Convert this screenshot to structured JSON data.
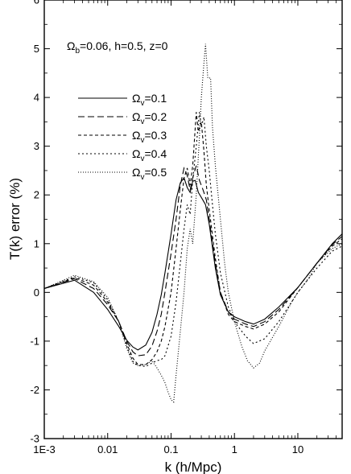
{
  "chart_data": {
    "type": "line",
    "title": "",
    "xlabel": "k (h/Mpc)",
    "ylabel": "T(k) error (%)",
    "xscale": "log",
    "xlim": [
      0.001,
      50
    ],
    "ylim": [
      -3,
      6
    ],
    "x_ticks": [
      {
        "value": 0.001,
        "label": "1E-3"
      },
      {
        "value": 0.01,
        "label": "0.01"
      },
      {
        "value": 0.1,
        "label": "0.1"
      },
      {
        "value": 1,
        "label": "1"
      },
      {
        "value": 10,
        "label": "10"
      }
    ],
    "y_ticks": [
      -3,
      -2,
      -1,
      0,
      1,
      2,
      3,
      4,
      5,
      6
    ],
    "grid": false,
    "legend_position": "upper-left",
    "annotation": {
      "omega": "Ω",
      "b_subscript": "b",
      "rest": "=0.06, h=0.5, z=0"
    },
    "series": [
      {
        "name": "Ωv=0.1",
        "symbol": "Ω",
        "subscript": "v",
        "value_text": "=0.1",
        "dash": "none",
        "width": 1.1,
        "points": [
          [
            0.001,
            0.08
          ],
          [
            0.003,
            0.25
          ],
          [
            0.006,
            0.0
          ],
          [
            0.01,
            -0.35
          ],
          [
            0.015,
            -0.7
          ],
          [
            0.02,
            -0.98
          ],
          [
            0.025,
            -1.12
          ],
          [
            0.03,
            -1.18
          ],
          [
            0.04,
            -1.08
          ],
          [
            0.05,
            -0.82
          ],
          [
            0.06,
            -0.45
          ],
          [
            0.07,
            -0.05
          ],
          [
            0.08,
            0.4
          ],
          [
            0.1,
            1.2
          ],
          [
            0.12,
            1.9
          ],
          [
            0.14,
            2.25
          ],
          [
            0.16,
            2.35
          ],
          [
            0.18,
            2.15
          ],
          [
            0.2,
            2.05
          ],
          [
            0.22,
            2.28
          ],
          [
            0.24,
            2.3
          ],
          [
            0.27,
            2.05
          ],
          [
            0.3,
            1.95
          ],
          [
            0.35,
            1.8
          ],
          [
            0.4,
            1.4
          ],
          [
            0.5,
            0.5
          ],
          [
            0.6,
            -0.05
          ],
          [
            0.8,
            -0.4
          ],
          [
            1.0,
            -0.5
          ],
          [
            1.5,
            -0.6
          ],
          [
            2,
            -0.65
          ],
          [
            3,
            -0.55
          ],
          [
            5,
            -0.3
          ],
          [
            10,
            0.1
          ],
          [
            20,
            0.6
          ],
          [
            35,
            1.0
          ],
          [
            50,
            1.2
          ]
        ]
      },
      {
        "name": "Ωv=0.2",
        "symbol": "Ω",
        "subscript": "v",
        "value_text": "=0.2",
        "dash": "8 4",
        "width": 1.1,
        "points": [
          [
            0.001,
            0.08
          ],
          [
            0.003,
            0.28
          ],
          [
            0.006,
            0.08
          ],
          [
            0.01,
            -0.25
          ],
          [
            0.015,
            -0.6
          ],
          [
            0.02,
            -1.0
          ],
          [
            0.025,
            -1.22
          ],
          [
            0.03,
            -1.3
          ],
          [
            0.04,
            -1.28
          ],
          [
            0.05,
            -1.1
          ],
          [
            0.06,
            -0.8
          ],
          [
            0.07,
            -0.45
          ],
          [
            0.08,
            0.0
          ],
          [
            0.1,
            0.8
          ],
          [
            0.12,
            1.5
          ],
          [
            0.14,
            2.2
          ],
          [
            0.16,
            2.55
          ],
          [
            0.18,
            2.4
          ],
          [
            0.2,
            2.1
          ],
          [
            0.22,
            2.35
          ],
          [
            0.25,
            2.6
          ],
          [
            0.28,
            2.3
          ],
          [
            0.32,
            2.1
          ],
          [
            0.36,
            1.9
          ],
          [
            0.4,
            1.5
          ],
          [
            0.5,
            0.6
          ],
          [
            0.6,
            0.0
          ],
          [
            0.8,
            -0.4
          ],
          [
            1,
            -0.55
          ],
          [
            1.5,
            -0.65
          ],
          [
            2,
            -0.7
          ],
          [
            3,
            -0.6
          ],
          [
            5,
            -0.35
          ],
          [
            10,
            0.1
          ],
          [
            20,
            0.6
          ],
          [
            35,
            0.98
          ],
          [
            50,
            1.15
          ]
        ]
      },
      {
        "name": "Ωv=0.3",
        "symbol": "Ω",
        "subscript": "v",
        "value_text": "=0.3",
        "dash": "4 3",
        "width": 1.1,
        "points": [
          [
            0.001,
            0.08
          ],
          [
            0.003,
            0.3
          ],
          [
            0.006,
            0.15
          ],
          [
            0.01,
            -0.2
          ],
          [
            0.015,
            -0.6
          ],
          [
            0.02,
            -1.05
          ],
          [
            0.025,
            -1.35
          ],
          [
            0.03,
            -1.48
          ],
          [
            0.04,
            -1.48
          ],
          [
            0.05,
            -1.38
          ],
          [
            0.06,
            -1.22
          ],
          [
            0.07,
            -1.0
          ],
          [
            0.08,
            -0.7
          ],
          [
            0.1,
            0.0
          ],
          [
            0.12,
            0.9
          ],
          [
            0.14,
            1.7
          ],
          [
            0.16,
            2.35
          ],
          [
            0.18,
            2.55
          ],
          [
            0.2,
            2.2
          ],
          [
            0.22,
            2.6
          ],
          [
            0.25,
            3.7
          ],
          [
            0.27,
            3.3
          ],
          [
            0.3,
            3.5
          ],
          [
            0.33,
            2.9
          ],
          [
            0.36,
            2.2
          ],
          [
            0.4,
            1.7
          ],
          [
            0.5,
            0.7
          ],
          [
            0.6,
            0.0
          ],
          [
            0.8,
            -0.45
          ],
          [
            1,
            -0.6
          ],
          [
            1.5,
            -0.7
          ],
          [
            2,
            -0.75
          ],
          [
            3,
            -0.65
          ],
          [
            5,
            -0.4
          ],
          [
            10,
            0.1
          ],
          [
            20,
            0.6
          ],
          [
            35,
            0.95
          ],
          [
            50,
            1.1
          ]
        ]
      },
      {
        "name": "Ωv=0.4",
        "symbol": "Ω",
        "subscript": "v",
        "value_text": "=0.4",
        "dash": "2 3",
        "width": 1.1,
        "points": [
          [
            0.001,
            0.08
          ],
          [
            0.003,
            0.32
          ],
          [
            0.006,
            0.2
          ],
          [
            0.01,
            -0.15
          ],
          [
            0.015,
            -0.6
          ],
          [
            0.02,
            -1.1
          ],
          [
            0.025,
            -1.42
          ],
          [
            0.03,
            -1.5
          ],
          [
            0.04,
            -1.52
          ],
          [
            0.05,
            -1.45
          ],
          [
            0.06,
            -1.4
          ],
          [
            0.07,
            -1.38
          ],
          [
            0.08,
            -1.3
          ],
          [
            0.1,
            -0.9
          ],
          [
            0.12,
            -0.2
          ],
          [
            0.14,
            0.6
          ],
          [
            0.16,
            1.3
          ],
          [
            0.18,
            1.8
          ],
          [
            0.2,
            1.6
          ],
          [
            0.22,
            2.3
          ],
          [
            0.25,
            3.0
          ],
          [
            0.28,
            3.7
          ],
          [
            0.3,
            3.4
          ],
          [
            0.33,
            3.6
          ],
          [
            0.36,
            3.0
          ],
          [
            0.4,
            2.5
          ],
          [
            0.45,
            1.8
          ],
          [
            0.5,
            1.2
          ],
          [
            0.6,
            0.4
          ],
          [
            0.8,
            -0.3
          ],
          [
            1,
            -0.6
          ],
          [
            1.5,
            -0.9
          ],
          [
            2,
            -1.05
          ],
          [
            3,
            -0.95
          ],
          [
            5,
            -0.6
          ],
          [
            10,
            0.0
          ],
          [
            20,
            0.5
          ],
          [
            35,
            0.85
          ],
          [
            50,
            0.95
          ]
        ]
      },
      {
        "name": "Ωv=0.5",
        "symbol": "Ω",
        "subscript": "v",
        "value_text": "=0.5",
        "dash": "1 2",
        "width": 1.1,
        "points": [
          [
            0.001,
            0.08
          ],
          [
            0.003,
            0.35
          ],
          [
            0.006,
            0.22
          ],
          [
            0.01,
            -0.1
          ],
          [
            0.015,
            -0.6
          ],
          [
            0.02,
            -1.15
          ],
          [
            0.025,
            -1.45
          ],
          [
            0.03,
            -1.5
          ],
          [
            0.04,
            -1.48
          ],
          [
            0.05,
            -1.4
          ],
          [
            0.06,
            -1.55
          ],
          [
            0.07,
            -1.7
          ],
          [
            0.08,
            -1.85
          ],
          [
            0.09,
            -2.05
          ],
          [
            0.1,
            -2.2
          ],
          [
            0.11,
            -2.25
          ],
          [
            0.12,
            -1.7
          ],
          [
            0.14,
            -0.8
          ],
          [
            0.16,
            0.0
          ],
          [
            0.18,
            0.9
          ],
          [
            0.2,
            1.3
          ],
          [
            0.22,
            1.0
          ],
          [
            0.25,
            2.0
          ],
          [
            0.28,
            3.2
          ],
          [
            0.3,
            4.0
          ],
          [
            0.33,
            4.7
          ],
          [
            0.35,
            5.1
          ],
          [
            0.38,
            4.4
          ],
          [
            0.42,
            4.4
          ],
          [
            0.45,
            3.4
          ],
          [
            0.5,
            2.6
          ],
          [
            0.6,
            1.5
          ],
          [
            0.7,
            0.6
          ],
          [
            0.8,
            0.0
          ],
          [
            1,
            -0.6
          ],
          [
            1.3,
            -1.1
          ],
          [
            1.6,
            -1.4
          ],
          [
            2,
            -1.55
          ],
          [
            2.5,
            -1.45
          ],
          [
            3,
            -1.2
          ],
          [
            5,
            -0.7
          ],
          [
            8,
            -0.2
          ],
          [
            10,
            0.0
          ],
          [
            15,
            0.3
          ],
          [
            20,
            0.6
          ],
          [
            35,
            0.9
          ],
          [
            50,
            1.0
          ]
        ]
      }
    ]
  }
}
